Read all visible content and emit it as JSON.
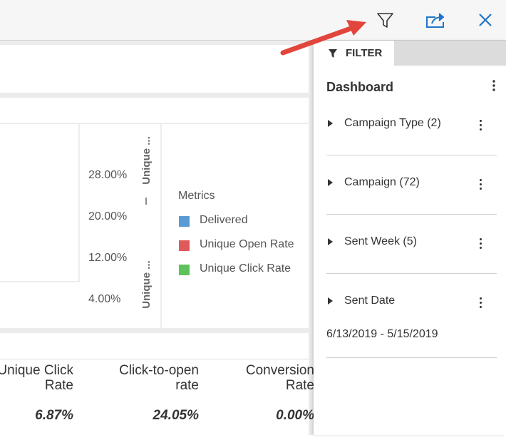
{
  "filter_panel": {
    "tab": "FILTER",
    "title": "Dashboard",
    "filters": [
      {
        "label": "Campaign Type (2)"
      },
      {
        "label": "Campaign (72)"
      },
      {
        "label": "Sent Week (5)"
      },
      {
        "label": "Sent Date",
        "value": "6/13/2019 - 5/15/2019"
      }
    ]
  },
  "chart": {
    "y_ticks": [
      "28.00%",
      "20.00%",
      "12.00%",
      "4.00%"
    ],
    "axis_titles": [
      "Unique ...",
      "Unique ..."
    ],
    "legend": {
      "title": "Metrics",
      "items": [
        {
          "name": "Delivered",
          "color": "#5b9bd5"
        },
        {
          "name": "Unique Open Rate",
          "color": "#e05a5a"
        },
        {
          "name": "Unique Click Rate",
          "color": "#5cc35c"
        }
      ]
    }
  },
  "table": {
    "columns": [
      {
        "header": "Unique Click Rate",
        "value": "6.87%"
      },
      {
        "header": "Click-to-open rate",
        "value": "24.05%"
      },
      {
        "header": "Conversion Rate",
        "value": "0.00%"
      }
    ]
  }
}
